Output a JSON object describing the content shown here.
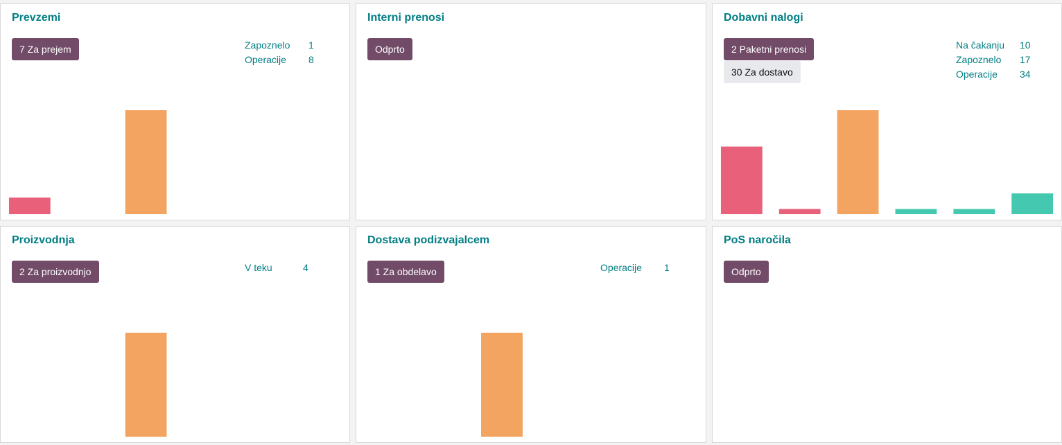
{
  "colors": {
    "title": "#017e84",
    "primary_button": "#714b67",
    "secondary_button": "#e7e9ed",
    "bar_late": "#e8607a",
    "bar_today": "#f2a460",
    "bar_future": "#44c8b0"
  },
  "cards": {
    "receipts": {
      "title": "Prevzemi",
      "button": "7 Za prejem",
      "stats": [
        {
          "label": "Zapoznelo",
          "value": "1"
        },
        {
          "label": "Operacije",
          "value": "8"
        }
      ]
    },
    "internal": {
      "title": "Interni prenosi",
      "button": "Odprto"
    },
    "delivery": {
      "title": "Dobavni nalogi",
      "button": "2 Paketni prenosi",
      "button_secondary": "30 Za dostavo",
      "stats": [
        {
          "label": "Na čakanju",
          "value": "10"
        },
        {
          "label": "Zapoznelo",
          "value": "17"
        },
        {
          "label": "Operacije",
          "value": "34"
        }
      ]
    },
    "manufacturing": {
      "title": "Proizvodnja",
      "button": "2 Za proizvodnjo",
      "stats": [
        {
          "label": "V teku",
          "value": "4"
        }
      ]
    },
    "subcontracting": {
      "title": "Dostava podizvajalcem",
      "button": "1 Za obdelavo",
      "stats": [
        {
          "label": "Operacije",
          "value": "1"
        }
      ]
    },
    "pos": {
      "title": "PoS naročila",
      "button": "Odprto"
    }
  },
  "chart_data": [
    {
      "type": "bar",
      "card": "receipts",
      "slots": 6,
      "bars": [
        {
          "slot": 0,
          "value": 0.16,
          "color": "#e8607a"
        },
        {
          "slot": 2,
          "value": 1.0,
          "color": "#f2a460"
        }
      ]
    },
    {
      "type": "bar",
      "card": "delivery",
      "slots": 6,
      "bars": [
        {
          "slot": 0,
          "value": 0.65,
          "color": "#e8607a"
        },
        {
          "slot": 1,
          "value": 0.05,
          "color": "#e8607a"
        },
        {
          "slot": 2,
          "value": 1.0,
          "color": "#f2a460"
        },
        {
          "slot": 3,
          "value": 0.05,
          "color": "#44c8b0"
        },
        {
          "slot": 4,
          "value": 0.05,
          "color": "#44c8b0"
        },
        {
          "slot": 5,
          "value": 0.2,
          "color": "#44c8b0"
        }
      ]
    },
    {
      "type": "bar",
      "card": "manufacturing",
      "slots": 6,
      "bars": [
        {
          "slot": 2,
          "value": 1.0,
          "color": "#f2a460"
        }
      ]
    },
    {
      "type": "bar",
      "card": "subcontracting",
      "slots": 6,
      "bars": [
        {
          "slot": 2,
          "value": 1.0,
          "color": "#f2a460"
        }
      ]
    }
  ]
}
